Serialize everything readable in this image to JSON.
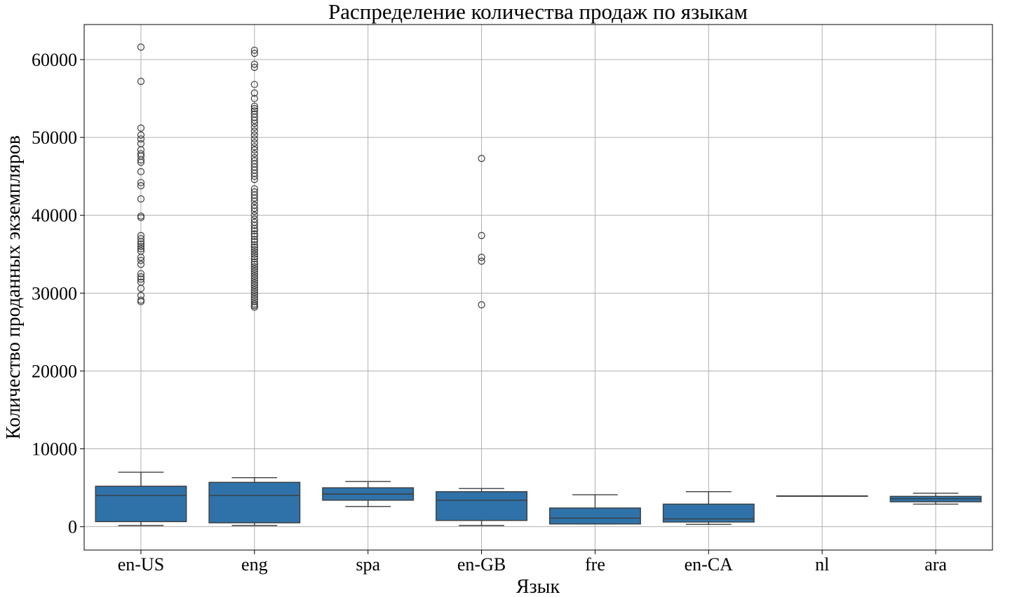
{
  "chart_data": {
    "type": "box",
    "title": "Распределение количества продаж по языкам",
    "xlabel": "Язык",
    "ylabel": "Количество проданных экземпляров",
    "ylim": [
      -3000,
      64500
    ],
    "yticks": [
      0,
      10000,
      20000,
      30000,
      40000,
      50000,
      60000
    ],
    "grid": true,
    "box_color": "#2f72a9",
    "categories": [
      "en-US",
      "eng",
      "spa",
      "en-GB",
      "fre",
      "en-CA",
      "nl",
      "ara"
    ],
    "boxes": [
      {
        "category": "en-US",
        "whislo": 150,
        "q1": 650,
        "med": 4000,
        "q3": 5200,
        "whishi": 7000,
        "fliers": [
          61600,
          57200,
          51200,
          50300,
          49800,
          49200,
          48400,
          47900,
          47600,
          47100,
          46800,
          45600,
          44200,
          43800,
          42100,
          39900,
          39700,
          37400,
          37000,
          36600,
          36300,
          36000,
          35700,
          35400,
          34600,
          34200,
          33700,
          32500,
          32100,
          31800,
          31400,
          30600,
          29700,
          29100,
          28900
        ]
      },
      {
        "category": "eng",
        "whislo": 150,
        "q1": 500,
        "med": 4000,
        "q3": 5700,
        "whishi": 6300,
        "fliers": [
          61200,
          60800,
          59400,
          59000,
          56800,
          55700,
          55000,
          54000,
          53700,
          53400,
          53000,
          52600,
          52200,
          51800,
          51300,
          50800,
          50300,
          49800,
          49300,
          48800,
          48400,
          47900,
          47400,
          47000,
          46600,
          46200,
          45800,
          45400,
          45000,
          44600,
          43400,
          43000,
          42600,
          42200,
          41800,
          41300,
          40900,
          40500,
          40000,
          39500,
          39100,
          38700,
          38300,
          38000,
          37600,
          37300,
          36900,
          36600,
          36200,
          35900,
          35600,
          35300,
          35000,
          34700,
          34400,
          34000,
          33700,
          33400,
          33100,
          32800,
          32500,
          32200,
          31900,
          31600,
          31300,
          31000,
          30700,
          30400,
          30100,
          29800,
          29500,
          29200,
          28900,
          28600,
          28400,
          28200
        ]
      },
      {
        "category": "spa",
        "whislo": 2600,
        "q1": 3400,
        "med": 4200,
        "q3": 5000,
        "whishi": 5800,
        "fliers": []
      },
      {
        "category": "en-GB",
        "whislo": 150,
        "q1": 800,
        "med": 3400,
        "q3": 4500,
        "whishi": 4900,
        "fliers": [
          47300,
          37400,
          34600,
          34100,
          28500
        ]
      },
      {
        "category": "fre",
        "whislo": 350,
        "q1": 350,
        "med": 1100,
        "q3": 2400,
        "whishi": 4100,
        "fliers": []
      },
      {
        "category": "en-CA",
        "whislo": 300,
        "q1": 600,
        "med": 1000,
        "q3": 2900,
        "whishi": 4500,
        "fliers": []
      },
      {
        "category": "nl",
        "whislo": 3950,
        "q1": 3950,
        "med": 3950,
        "q3": 3950,
        "whishi": 3950,
        "fliers": []
      },
      {
        "category": "ara",
        "whislo": 2900,
        "q1": 3200,
        "med": 3600,
        "q3": 3900,
        "whishi": 4300,
        "fliers": []
      }
    ]
  }
}
